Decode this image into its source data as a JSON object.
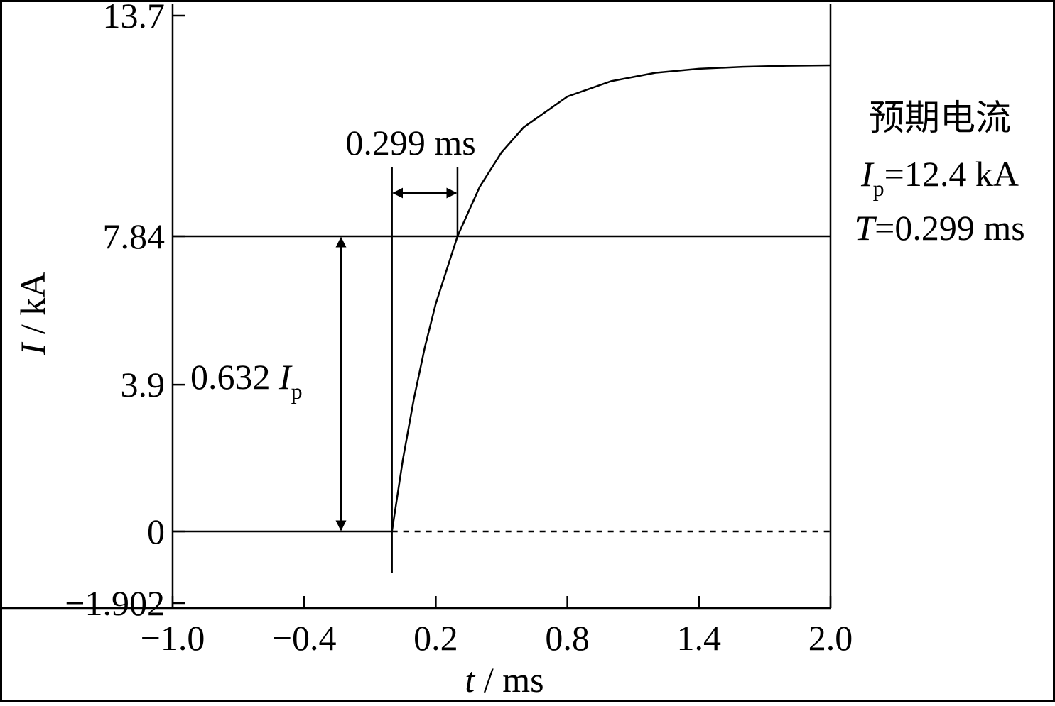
{
  "chart_data": {
    "type": "line",
    "x_label": {
      "italic": "t",
      "text": " / ms"
    },
    "y_label": {
      "italic": "I",
      "text": " / kA"
    },
    "x": [
      -1.0,
      0,
      0.05,
      0.1,
      0.15,
      0.2,
      0.299,
      0.4,
      0.5,
      0.6,
      0.8,
      1.0,
      1.2,
      1.4,
      1.6,
      1.8,
      2.0
    ],
    "series": [
      {
        "color": "#000000",
        "values": [
          0,
          0,
          1.91,
          3.52,
          4.89,
          6.05,
          7.84,
          9.15,
          10.07,
          10.73,
          11.55,
          11.96,
          12.18,
          12.29,
          12.34,
          12.37,
          12.38
        ]
      }
    ],
    "xlim": [
      -1.0,
      2.0
    ],
    "xticks": [
      {
        "value": -1.0,
        "label": "−1.0"
      },
      {
        "value": -0.4,
        "label": "−0.4"
      },
      0.2,
      0.8,
      1.4,
      {
        "value": 2.0,
        "label": "2.0"
      }
    ],
    "ylim": [
      -1.902,
      13.7
    ],
    "yticks": [
      {
        "value": -1.902,
        "label": "−1.902"
      },
      0,
      3.9,
      7.84,
      13.7
    ],
    "annotations": {
      "interval": "0.299 ms",
      "fraction": {
        "text": "0.632 ",
        "italic": "I",
        "sub": "p"
      },
      "legend_title": "预期电流",
      "current": {
        "italic": "I",
        "sub": "p",
        "text": "=12.4 kA"
      },
      "time_constant": {
        "italic": "T",
        "text": "=0.299 ms"
      }
    }
  }
}
